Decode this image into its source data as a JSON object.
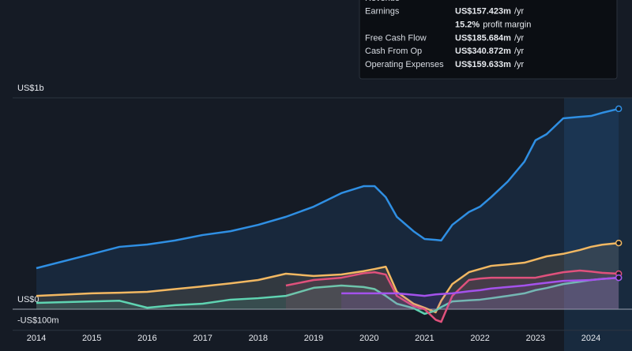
{
  "chart_data": {
    "type": "line",
    "x": [
      2014.0,
      2015.0,
      2015.5,
      2016.0,
      2016.5,
      2017.0,
      2017.5,
      2018.0,
      2018.5,
      2019.0,
      2019.5,
      2019.9,
      2020.1,
      2020.3,
      2020.5,
      2020.8,
      2021.0,
      2021.2,
      2021.3,
      2021.5,
      2021.8,
      2022.0,
      2022.2,
      2022.5,
      2022.8,
      2023.0,
      2023.2,
      2023.5,
      2023.8,
      2024.0,
      2024.2,
      2024.5
    ],
    "series": [
      {
        "name": "Revenue",
        "color": "#2f8fe3",
        "values": [
          194,
          261,
          295,
          306,
          325,
          351,
          369,
          399,
          437,
          485,
          549,
          582,
          582,
          530,
          437,
          369,
          332,
          328,
          325,
          399,
          460,
          485,
          530,
          604,
          698,
          799,
          828,
          903,
          910,
          914,
          929,
          948
        ]
      },
      {
        "name": "Cash From Op",
        "color": "#f2b862",
        "values": [
          63,
          75,
          78,
          82,
          95,
          108,
          122,
          138,
          168,
          157,
          164,
          180,
          190,
          201,
          82,
          26,
          7,
          -15,
          40,
          119,
          175,
          190,
          205,
          212,
          220,
          235,
          250,
          262,
          280,
          295,
          305,
          313
        ]
      },
      {
        "name": "Earnings",
        "color": "#5fd4b2",
        "values": [
          30,
          37,
          40,
          7,
          19,
          26,
          45,
          52,
          63,
          101,
          112,
          105,
          95,
          63,
          26,
          5,
          -22,
          -7,
          10,
          37,
          42,
          45,
          52,
          63,
          75,
          90,
          100,
          119,
          130,
          138,
          143,
          149
        ]
      },
      {
        "name": "Free Cash Flow",
        "color": "#e0517c",
        "values": [
          null,
          null,
          null,
          null,
          null,
          null,
          null,
          null,
          112,
          138,
          149,
          170,
          175,
          164,
          63,
          15,
          0,
          -50,
          -60,
          63,
          138,
          145,
          149,
          149,
          149,
          149,
          160,
          175,
          183,
          178,
          172,
          168
        ]
      },
      {
        "name": "Operating Expenses",
        "color": "#a452ec",
        "values": [
          null,
          null,
          null,
          null,
          null,
          null,
          null,
          null,
          null,
          null,
          75,
          75,
          75,
          75,
          75,
          68,
          63,
          70,
          72,
          75,
          85,
          90,
          98,
          105,
          112,
          119,
          125,
          134,
          136,
          138,
          143,
          149
        ]
      }
    ],
    "xlim": [
      2013.345,
      2024.74
    ],
    "xticks": [
      2014,
      2015,
      2016,
      2017,
      2018,
      2019,
      2020,
      2021,
      2022,
      2023,
      2024
    ],
    "ylim": [
      -100,
      1000
    ],
    "yticks": [
      {
        "value": 1000,
        "label": "US$1b"
      },
      {
        "value": 0,
        "label": "US$0"
      },
      {
        "value": -100,
        "label": "-US$100m"
      }
    ]
  },
  "tooltip": {
    "rows": [
      {
        "label": "Revenue"
      },
      {
        "label": "Earnings",
        "value": "US$157.423m",
        "unit": "/yr"
      },
      {
        "value": "15.2%",
        "unit": "profit margin"
      },
      {
        "label": "Free Cash Flow",
        "value": "US$185.684m",
        "unit": "/yr"
      },
      {
        "label": "Cash From Op",
        "value": "US$340.872m",
        "unit": "/yr"
      },
      {
        "label": "Operating Expenses",
        "value": "US$159.633m",
        "unit": "/yr"
      }
    ]
  }
}
